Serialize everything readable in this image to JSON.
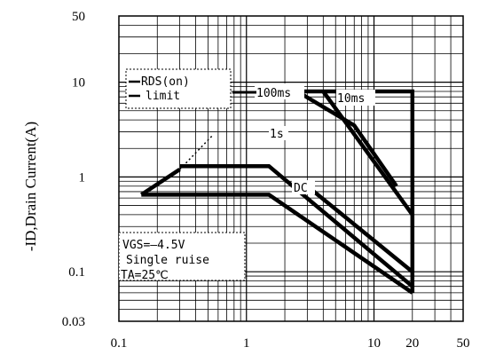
{
  "chart_data": {
    "type": "line",
    "title": "",
    "xlabel": "",
    "ylabel": "-ID,Drain Current(A)",
    "xscale": "log",
    "yscale": "log",
    "xlim": [
      0.1,
      50
    ],
    "ylim": [
      0.03,
      50
    ],
    "x_ticks": [
      "0.1",
      "1",
      "10",
      "20",
      "50"
    ],
    "y_ticks": [
      "50",
      "10",
      "1",
      "0.1",
      "0.03"
    ],
    "grid": true,
    "series": [
      {
        "name": "RDS(on) limit",
        "x": [
          0.15,
          0.3
        ],
        "y": [
          0.65,
          1.2
        ]
      },
      {
        "name": "10ms",
        "x": [
          2.5,
          7,
          15
        ],
        "y": [
          8.0,
          3.5,
          0.8
        ]
      },
      {
        "name": "100ms",
        "x": [
          0.3,
          1.5,
          20
        ],
        "y": [
          1.3,
          1.3,
          0.07
        ]
      },
      {
        "name": "1s",
        "x": [
          0.15,
          1.5,
          20
        ],
        "y": [
          0.65,
          0.65,
          0.06
        ]
      },
      {
        "name": "DC",
        "x": [
          3,
          20
        ],
        "y": [
          0.8,
          0.1
        ]
      },
      {
        "name": "",
        "x": [
          4,
          20
        ],
        "y": [
          8.0,
          0.4
        ]
      },
      {
        "name": "",
        "x": [
          2,
          20,
          20
        ],
        "y": [
          8.0,
          8.0,
          0.06
        ]
      }
    ],
    "annotations": {
      "rds_line1": "RDS(on)",
      "rds_line2": "limit",
      "label_100ms": "100ms",
      "label_10ms": "10ms",
      "label_1s": "1s",
      "label_dc": "DC",
      "cond_line1": "VGS=—4.5V",
      "cond_line2": "Single ruise",
      "cond_line3": "TA=25℃"
    }
  }
}
